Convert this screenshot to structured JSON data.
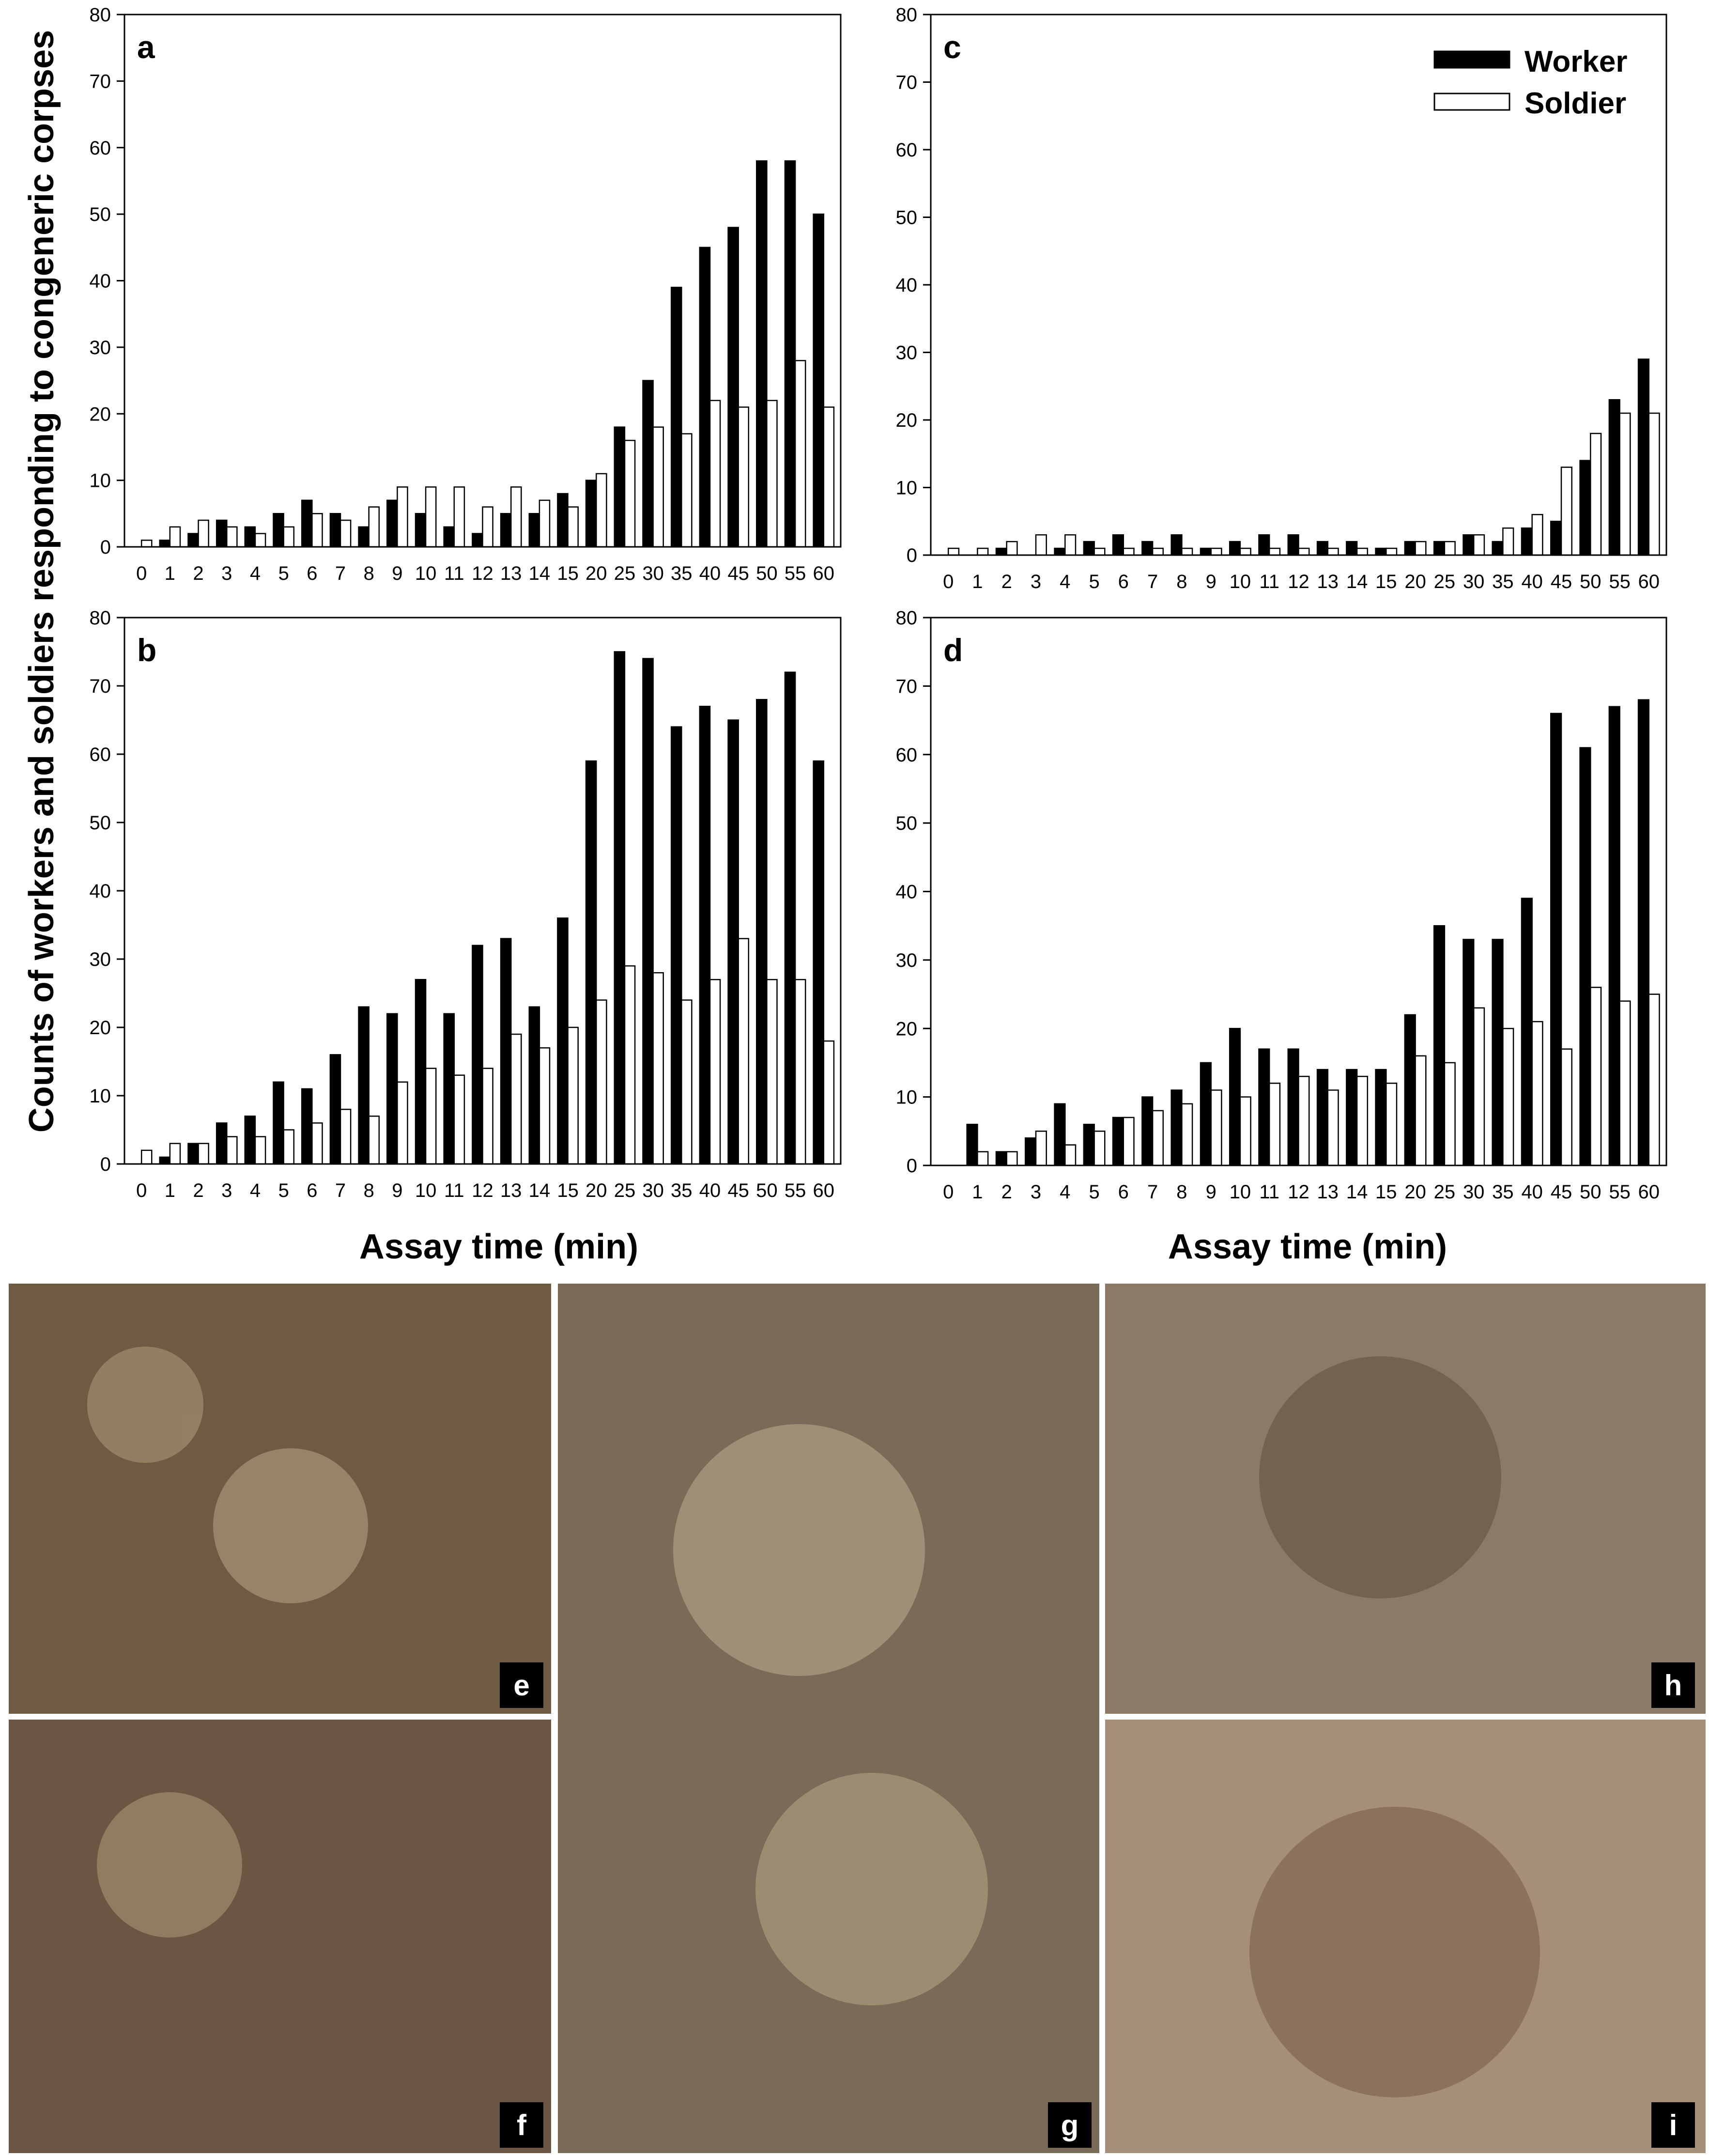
{
  "figure": {
    "ylabel": "Counts of workers and soldiers responding to congeneric corpses",
    "xlabel_left": "Assay time (min)",
    "xlabel_right": "Assay time (min)",
    "legend": [
      {
        "label": "Worker",
        "color": "#000000"
      },
      {
        "label": "Soldier",
        "color": "#ffffff"
      }
    ],
    "photo_panels": [
      {
        "letter": "e",
        "bg": "#6f5a44"
      },
      {
        "letter": "f",
        "bg": "#6a5642"
      },
      {
        "letter": "g",
        "bg": "#7a6a58"
      },
      {
        "letter": "h",
        "bg": "#8d7a66"
      },
      {
        "letter": "i",
        "bg": "#a58f78"
      }
    ]
  },
  "chart_data": [
    {
      "type": "bar",
      "panel": "a",
      "categories": [
        "0",
        "1",
        "2",
        "3",
        "4",
        "5",
        "6",
        "7",
        "8",
        "9",
        "10",
        "11",
        "12",
        "13",
        "14",
        "15",
        "20",
        "25",
        "30",
        "35",
        "40",
        "45",
        "50",
        "55",
        "60"
      ],
      "series": [
        {
          "name": "Worker",
          "color": "#000000",
          "values": [
            0,
            1,
            2,
            4,
            3,
            5,
            7,
            5,
            3,
            7,
            5,
            3,
            2,
            5,
            5,
            8,
            10,
            18,
            25,
            39,
            45,
            48,
            58,
            58,
            50
          ]
        },
        {
          "name": "Soldier",
          "color": "#ffffff",
          "values": [
            1,
            3,
            4,
            3,
            2,
            3,
            5,
            4,
            6,
            9,
            9,
            9,
            6,
            9,
            7,
            6,
            11,
            16,
            18,
            17,
            22,
            21,
            22,
            28,
            21
          ]
        }
      ],
      "ylim": [
        0,
        80
      ],
      "yticks": [
        0,
        10,
        20,
        30,
        40,
        50,
        60,
        70,
        80
      ]
    },
    {
      "type": "bar",
      "panel": "c",
      "categories": [
        "0",
        "1",
        "2",
        "3",
        "4",
        "5",
        "6",
        "7",
        "8",
        "9",
        "10",
        "11",
        "12",
        "13",
        "14",
        "15",
        "20",
        "25",
        "30",
        "35",
        "40",
        "45",
        "50",
        "55",
        "60"
      ],
      "series": [
        {
          "name": "Worker",
          "color": "#000000",
          "values": [
            0,
            0,
            1,
            0,
            1,
            2,
            3,
            2,
            3,
            1,
            2,
            3,
            3,
            2,
            2,
            1,
            2,
            2,
            3,
            2,
            4,
            5,
            14,
            23,
            29
          ]
        },
        {
          "name": "Soldier",
          "color": "#ffffff",
          "values": [
            1,
            1,
            2,
            3,
            3,
            1,
            1,
            1,
            1,
            1,
            1,
            1,
            1,
            1,
            1,
            1,
            2,
            2,
            3,
            4,
            6,
            13,
            18,
            21,
            21
          ]
        }
      ],
      "ylim": [
        0,
        80
      ],
      "yticks": [
        0,
        10,
        20,
        30,
        40,
        50,
        60,
        70,
        80
      ]
    },
    {
      "type": "bar",
      "panel": "b",
      "categories": [
        "0",
        "1",
        "2",
        "3",
        "4",
        "5",
        "6",
        "7",
        "8",
        "9",
        "10",
        "11",
        "12",
        "13",
        "14",
        "15",
        "20",
        "25",
        "30",
        "35",
        "40",
        "45",
        "50",
        "55",
        "60"
      ],
      "series": [
        {
          "name": "Worker",
          "color": "#000000",
          "values": [
            0,
            1,
            3,
            6,
            7,
            12,
            11,
            16,
            23,
            22,
            27,
            22,
            32,
            33,
            23,
            36,
            59,
            75,
            74,
            64,
            67,
            65,
            68,
            72,
            59
          ]
        },
        {
          "name": "Soldier",
          "color": "#ffffff",
          "values": [
            2,
            3,
            3,
            4,
            4,
            5,
            6,
            8,
            7,
            12,
            14,
            13,
            14,
            19,
            17,
            20,
            24,
            29,
            28,
            24,
            27,
            33,
            27,
            27,
            18
          ]
        }
      ],
      "ylim": [
        0,
        80
      ],
      "yticks": [
        0,
        10,
        20,
        30,
        40,
        50,
        60,
        70,
        80
      ]
    },
    {
      "type": "bar",
      "panel": "d",
      "categories": [
        "0",
        "1",
        "2",
        "3",
        "4",
        "5",
        "6",
        "7",
        "8",
        "9",
        "10",
        "11",
        "12",
        "13",
        "14",
        "15",
        "20",
        "25",
        "30",
        "35",
        "40",
        "45",
        "50",
        "55",
        "60"
      ],
      "series": [
        {
          "name": "Worker",
          "color": "#000000",
          "values": [
            0,
            6,
            2,
            4,
            9,
            6,
            7,
            10,
            11,
            15,
            20,
            17,
            17,
            14,
            14,
            14,
            22,
            35,
            33,
            33,
            39,
            66,
            61,
            67,
            68
          ]
        },
        {
          "name": "Soldier",
          "color": "#ffffff",
          "values": [
            0,
            2,
            2,
            5,
            3,
            5,
            7,
            8,
            9,
            11,
            10,
            12,
            13,
            11,
            13,
            12,
            16,
            15,
            23,
            20,
            21,
            17,
            26,
            24,
            25
          ]
        }
      ],
      "ylim": [
        0,
        80
      ],
      "yticks": [
        0,
        10,
        20,
        30,
        40,
        50,
        60,
        70,
        80
      ]
    }
  ]
}
